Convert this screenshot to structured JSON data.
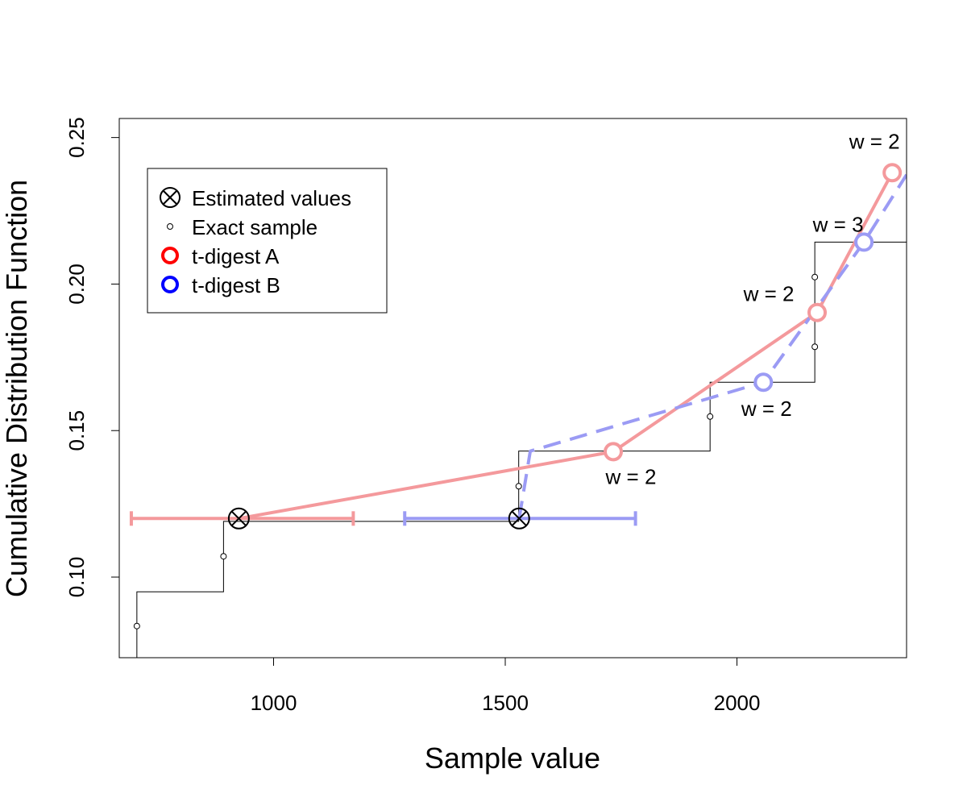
{
  "chart_data": {
    "type": "line",
    "title": "",
    "xlabel": "Sample value",
    "ylabel": "Cumulative Distribution Function",
    "xlim": [
      667,
      2366
    ],
    "ylim": [
      0.0725,
      0.2565
    ],
    "x_ticks": [
      1000,
      1500,
      2000
    ],
    "x_tick_labels": [
      "1000",
      "1500",
      "2000"
    ],
    "y_ticks": [
      0.1,
      0.15,
      0.2,
      0.25
    ],
    "y_tick_labels": [
      "0.10",
      "0.15",
      "0.20",
      "0.25"
    ],
    "grid": false,
    "legend": {
      "placement": "top-left",
      "entries": [
        {
          "label": "Estimated values",
          "marker": "circle-x",
          "color": "#000000"
        },
        {
          "label": "Exact sample",
          "marker": "small-circle",
          "color": "#000000"
        },
        {
          "label": "t-digest A",
          "marker": "circle",
          "color": "#ff0000"
        },
        {
          "label": "t-digest B",
          "marker": "circle",
          "color": "#0000ff"
        }
      ]
    },
    "colors": {
      "digest_a_line": "#f4999c",
      "digest_b_line": "#9b9bf4",
      "ecdf": "#000000"
    },
    "series": [
      {
        "name": "Exact sample",
        "kind": "step",
        "points": [
          [
            705,
            0.095
          ],
          [
            892,
            0.119
          ],
          [
            1529,
            0.143
          ],
          [
            1942,
            0.1665
          ],
          [
            2168,
            0.2143
          ],
          [
            2366,
            0.2143
          ]
        ],
        "start": [
          705,
          0.0725
        ],
        "samples": [
          [
            705,
            0.0833
          ],
          [
            892,
            0.1071
          ],
          [
            1529,
            0.131
          ],
          [
            1942,
            0.1548
          ],
          [
            2168,
            0.1786
          ],
          [
            2168,
            0.2024
          ]
        ]
      },
      {
        "name": "t-digest A",
        "kind": "solid",
        "points": [
          [
            925,
            0.12
          ],
          [
            1733,
            0.1428
          ],
          [
            2173,
            0.1903
          ],
          [
            2335,
            0.238
          ]
        ],
        "centroids": [
          [
            1733,
            0.1428
          ],
          [
            2173,
            0.1903
          ],
          [
            2335,
            0.238
          ]
        ],
        "weights": [
          "w = 2",
          "w = 2",
          "w = 2"
        ]
      },
      {
        "name": "t-digest B",
        "kind": "dashed",
        "points": [
          [
            1530,
            0.12
          ],
          [
            1554,
            0.143
          ],
          [
            2057,
            0.1665
          ],
          [
            2274,
            0.2143
          ],
          [
            2366,
            0.2373
          ]
        ],
        "centroids": [
          [
            2057,
            0.1665
          ],
          [
            2274,
            0.2143
          ]
        ],
        "weights": [
          "w = 2",
          "w = 3"
        ]
      }
    ],
    "estimated_values": [
      {
        "digest": "t-digest A",
        "x": 925,
        "y": 0.12,
        "interval": [
          693,
          1172
        ]
      },
      {
        "digest": "t-digest B",
        "x": 1530,
        "y": 0.12,
        "interval": [
          1283,
          1781
        ]
      }
    ]
  }
}
